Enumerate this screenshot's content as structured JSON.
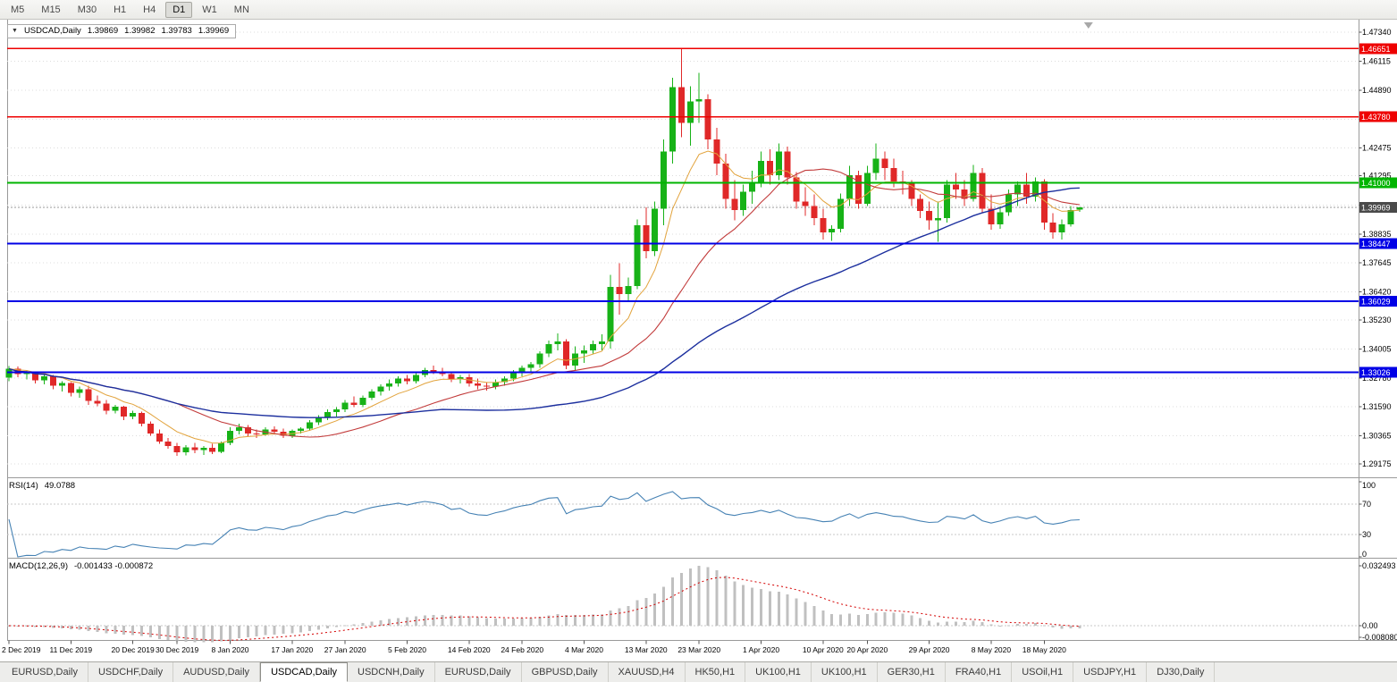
{
  "toolbar": {
    "timeframes": [
      "M5",
      "M15",
      "M30",
      "H1",
      "H4",
      "D1",
      "W1",
      "MN"
    ],
    "active_timeframe": "D1"
  },
  "chart_caption": {
    "arrow_icon": "▼",
    "symbol": "USDCAD,Daily",
    "open": "1.39869",
    "high": "1.39982",
    "low": "1.39783",
    "close": "1.39969"
  },
  "tabs": {
    "items": [
      "EURUSD,Daily",
      "USDCHF,Daily",
      "AUDUSD,Daily",
      "USDCAD,Daily",
      "USDCNH,Daily",
      "EURUSD,Daily",
      "GBPUSD,Daily",
      "XAUUSD,H4",
      "HK50,H1",
      "UK100,H1",
      "UK100,H1",
      "GER30,H1",
      "FRA40,H1",
      "USOil,H1",
      "USDJPY,H1",
      "DJ30,Daily"
    ],
    "active_index": 3
  },
  "chart_data": {
    "type": "candlestick",
    "title": "USDCAD,Daily",
    "price_axis_ticks": [
      "1.47340",
      "1.46115",
      "1.44890",
      "1.43665",
      "1.42475",
      "1.41295",
      "1.40060",
      "1.38835",
      "1.37645",
      "1.36420",
      "1.35230",
      "1.34005",
      "1.32780",
      "1.31590",
      "1.30365",
      "1.29175"
    ],
    "levels": [
      {
        "price": 1.46651,
        "label": "1.46651",
        "color": "#EE0000",
        "width": 1.4
      },
      {
        "price": 1.4378,
        "label": "1.43780",
        "color": "#EE0000",
        "width": 1.4
      },
      {
        "price": 1.41,
        "label": "1.41000",
        "color": "#00B400",
        "width": 2
      },
      {
        "price": 1.38447,
        "label": "1.38447",
        "color": "#0000E6",
        "width": 2
      },
      {
        "price": 1.36029,
        "label": "1.36029",
        "color": "#0000E6",
        "width": 2
      },
      {
        "price": 1.33026,
        "label": "1.33026",
        "color": "#0000E6",
        "width": 2
      }
    ],
    "current_price": 1.39969,
    "current_price_label": "1.39969",
    "x_labels": [
      {
        "index": 0,
        "label": "2 Dec 2019"
      },
      {
        "index": 7,
        "label": "11 Dec 2019"
      },
      {
        "index": 14,
        "label": "20 Dec 2019"
      },
      {
        "index": 19,
        "label": "30 Dec 2019"
      },
      {
        "index": 25,
        "label": "8 Jan 2020"
      },
      {
        "index": 32,
        "label": "17 Jan 2020"
      },
      {
        "index": 38,
        "label": "27 Jan 2020"
      },
      {
        "index": 45,
        "label": "5 Feb 2020"
      },
      {
        "index": 52,
        "label": "14 Feb 2020"
      },
      {
        "index": 58,
        "label": "24 Feb 2020"
      },
      {
        "index": 65,
        "label": "4 Mar 2020"
      },
      {
        "index": 72,
        "label": "13 Mar 2020"
      },
      {
        "index": 78,
        "label": "23 Mar 2020"
      },
      {
        "index": 85,
        "label": "1 Apr 2020"
      },
      {
        "index": 92,
        "label": "10 Apr 2020"
      },
      {
        "index": 97,
        "label": "20 Apr 2020"
      },
      {
        "index": 104,
        "label": "29 Apr 2020"
      },
      {
        "index": 111,
        "label": "8 May 2020"
      },
      {
        "index": 117,
        "label": "18 May 2020"
      }
    ],
    "candles": [
      [
        1.328,
        1.333,
        1.3265,
        1.3318
      ],
      [
        1.3318,
        1.3327,
        1.3282,
        1.3296
      ],
      [
        1.3296,
        1.3312,
        1.3272,
        1.3302
      ],
      [
        1.3302,
        1.3306,
        1.3256,
        1.327
      ],
      [
        1.327,
        1.3292,
        1.3252,
        1.3286
      ],
      [
        1.3286,
        1.3291,
        1.3232,
        1.3246
      ],
      [
        1.3246,
        1.3266,
        1.3222,
        1.3258
      ],
      [
        1.3258,
        1.3262,
        1.3202,
        1.3216
      ],
      [
        1.3216,
        1.3242,
        1.3196,
        1.3232
      ],
      [
        1.3232,
        1.3246,
        1.3166,
        1.3182
      ],
      [
        1.3182,
        1.3206,
        1.316,
        1.3172
      ],
      [
        1.3172,
        1.3186,
        1.3126,
        1.3142
      ],
      [
        1.3142,
        1.3166,
        1.313,
        1.3158
      ],
      [
        1.3158,
        1.3162,
        1.3102,
        1.3116
      ],
      [
        1.3116,
        1.3142,
        1.3106,
        1.3132
      ],
      [
        1.3132,
        1.3138,
        1.3076,
        1.3086
      ],
      [
        1.3086,
        1.3096,
        1.3036,
        1.3046
      ],
      [
        1.3046,
        1.3062,
        1.3002,
        1.3012
      ],
      [
        1.3012,
        1.3026,
        1.2982,
        1.2992
      ],
      [
        1.2992,
        1.3006,
        1.2952,
        1.2966
      ],
      [
        1.2966,
        1.2996,
        1.2954,
        1.2988
      ],
      [
        1.2988,
        1.3006,
        1.2962,
        1.2976
      ],
      [
        1.2976,
        1.2992,
        1.2956,
        1.2986
      ],
      [
        1.2986,
        1.3002,
        1.2958,
        1.2968
      ],
      [
        1.2968,
        1.3012,
        1.2962,
        1.3006
      ],
      [
        1.3006,
        1.3072,
        1.2996,
        1.3056
      ],
      [
        1.3056,
        1.3086,
        1.3042,
        1.3072
      ],
      [
        1.3072,
        1.3082,
        1.3032,
        1.3046
      ],
      [
        1.3046,
        1.3062,
        1.3026,
        1.3042
      ],
      [
        1.3042,
        1.3072,
        1.3036,
        1.3062
      ],
      [
        1.3062,
        1.3076,
        1.3042,
        1.3052
      ],
      [
        1.3052,
        1.3066,
        1.3026,
        1.3036
      ],
      [
        1.3036,
        1.3062,
        1.3026,
        1.3056
      ],
      [
        1.3056,
        1.3072,
        1.3046,
        1.3066
      ],
      [
        1.3066,
        1.3102,
        1.3056,
        1.3092
      ],
      [
        1.3092,
        1.3122,
        1.3082,
        1.3112
      ],
      [
        1.3112,
        1.3146,
        1.3102,
        1.3136
      ],
      [
        1.3136,
        1.3156,
        1.3116,
        1.3146
      ],
      [
        1.3146,
        1.3186,
        1.3136,
        1.3176
      ],
      [
        1.3176,
        1.3202,
        1.3156,
        1.3166
      ],
      [
        1.3166,
        1.3206,
        1.3156,
        1.3196
      ],
      [
        1.3196,
        1.3232,
        1.3186,
        1.3222
      ],
      [
        1.3222,
        1.3252,
        1.3206,
        1.3242
      ],
      [
        1.3242,
        1.3272,
        1.3226,
        1.3256
      ],
      [
        1.3256,
        1.3286,
        1.3242,
        1.3276
      ],
      [
        1.3276,
        1.3292,
        1.3252,
        1.3266
      ],
      [
        1.3266,
        1.3302,
        1.3256,
        1.3292
      ],
      [
        1.3292,
        1.3322,
        1.3282,
        1.3312
      ],
      [
        1.3312,
        1.3332,
        1.3296,
        1.3306
      ],
      [
        1.3306,
        1.3322,
        1.3286,
        1.3296
      ],
      [
        1.3296,
        1.3306,
        1.3262,
        1.3272
      ],
      [
        1.3272,
        1.3292,
        1.3256,
        1.3282
      ],
      [
        1.3282,
        1.3296,
        1.3242,
        1.3256
      ],
      [
        1.3256,
        1.3276,
        1.3232,
        1.3246
      ],
      [
        1.3246,
        1.3262,
        1.3226,
        1.3242
      ],
      [
        1.3242,
        1.3272,
        1.3232,
        1.3262
      ],
      [
        1.3262,
        1.3286,
        1.3246,
        1.3276
      ],
      [
        1.3276,
        1.3312,
        1.3266,
        1.3302
      ],
      [
        1.3302,
        1.3332,
        1.3286,
        1.3322
      ],
      [
        1.3322,
        1.3346,
        1.3302,
        1.3336
      ],
      [
        1.3336,
        1.3392,
        1.3322,
        1.3382
      ],
      [
        1.3382,
        1.3436,
        1.3366,
        1.3422
      ],
      [
        1.3422,
        1.3466,
        1.3396,
        1.3432
      ],
      [
        1.3432,
        1.3442,
        1.3316,
        1.3332
      ],
      [
        1.3332,
        1.3412,
        1.331,
        1.3382
      ],
      [
        1.3382,
        1.3416,
        1.3342,
        1.3396
      ],
      [
        1.3396,
        1.3436,
        1.3382,
        1.3422
      ],
      [
        1.3422,
        1.3462,
        1.3396,
        1.3432
      ],
      [
        1.3432,
        1.3712,
        1.3402,
        1.3662
      ],
      [
        1.3662,
        1.3762,
        1.3546,
        1.3632
      ],
      [
        1.3632,
        1.3702,
        1.3602,
        1.3666
      ],
      [
        1.3666,
        1.3946,
        1.3652,
        1.3922
      ],
      [
        1.3922,
        1.3996,
        1.3782,
        1.3812
      ],
      [
        1.3812,
        1.4022,
        1.3792,
        1.3992
      ],
      [
        1.3992,
        1.4282,
        1.3922,
        1.4232
      ],
      [
        1.4232,
        1.4542,
        1.4182,
        1.4502
      ],
      [
        1.4502,
        1.4668,
        1.4292,
        1.4352
      ],
      [
        1.4352,
        1.4506,
        1.4256,
        1.4442
      ],
      [
        1.4442,
        1.4562,
        1.4352,
        1.4452
      ],
      [
        1.4452,
        1.4472,
        1.4242,
        1.4282
      ],
      [
        1.4282,
        1.4332,
        1.4132,
        1.4182
      ],
      [
        1.4182,
        1.4222,
        1.3992,
        1.4032
      ],
      [
        1.4032,
        1.4112,
        1.3942,
        1.3986
      ],
      [
        1.3986,
        1.4092,
        1.3962,
        1.4062
      ],
      [
        1.4062,
        1.4152,
        1.4012,
        1.4102
      ],
      [
        1.4102,
        1.4232,
        1.4082,
        1.4192
      ],
      [
        1.4192,
        1.4242,
        1.4092,
        1.4132
      ],
      [
        1.4132,
        1.4266,
        1.4112,
        1.4232
      ],
      [
        1.4232,
        1.4252,
        1.4092,
        1.4122
      ],
      [
        1.4122,
        1.4146,
        1.3992,
        1.4022
      ],
      [
        1.4022,
        1.4082,
        1.3962,
        1.4002
      ],
      [
        1.4002,
        1.4052,
        1.3922,
        1.3952
      ],
      [
        1.3952,
        1.3992,
        1.3862,
        1.3892
      ],
      [
        1.3892,
        1.3922,
        1.3856,
        1.3906
      ],
      [
        1.3906,
        1.4056,
        1.3892,
        1.4032
      ],
      [
        1.4032,
        1.4172,
        1.4002,
        1.4132
      ],
      [
        1.4132,
        1.4152,
        1.3992,
        1.4012
      ],
      [
        1.4012,
        1.4172,
        1.4002,
        1.4142
      ],
      [
        1.4142,
        1.4266,
        1.4112,
        1.4202
      ],
      [
        1.4202,
        1.4232,
        1.4112,
        1.4162
      ],
      [
        1.4162,
        1.4202,
        1.4082,
        1.4106
      ],
      [
        1.4106,
        1.4152,
        1.4052,
        1.4096
      ],
      [
        1.4096,
        1.4112,
        1.4002,
        1.4032
      ],
      [
        1.4032,
        1.4052,
        1.3952,
        1.3982
      ],
      [
        1.3982,
        1.4022,
        1.3902,
        1.3942
      ],
      [
        1.3942,
        1.4022,
        1.3852,
        1.3952
      ],
      [
        1.3952,
        1.4112,
        1.3932,
        1.4092
      ],
      [
        1.4092,
        1.4142,
        1.4032,
        1.4072
      ],
      [
        1.4072,
        1.4112,
        1.4002,
        1.4032
      ],
      [
        1.4032,
        1.4176,
        1.4022,
        1.4142
      ],
      [
        1.4142,
        1.4162,
        1.3972,
        1.3992
      ],
      [
        1.3992,
        1.4052,
        1.3902,
        1.3926
      ],
      [
        1.3926,
        1.4002,
        1.3906,
        1.3976
      ],
      [
        1.3976,
        1.4072,
        1.3962,
        1.4052
      ],
      [
        1.4052,
        1.4106,
        1.4002,
        1.4092
      ],
      [
        1.4092,
        1.4142,
        1.4012,
        1.4042
      ],
      [
        1.4042,
        1.4122,
        1.4022,
        1.4106
      ],
      [
        1.4106,
        1.4116,
        1.3902,
        1.3932
      ],
      [
        1.3932,
        1.3972,
        1.3866,
        1.3892
      ],
      [
        1.3892,
        1.3946,
        1.3862,
        1.3926
      ],
      [
        1.3926,
        1.4002,
        1.3916,
        1.3986
      ],
      [
        1.39869,
        1.39982,
        1.39783,
        1.39969
      ]
    ],
    "moving_averages": [
      {
        "period": 8,
        "method": "ema",
        "color": "#E2A33C",
        "width": 1
      },
      {
        "period": 20,
        "method": "sma",
        "color": "#C23B3B",
        "width": 1.1
      },
      {
        "period": 50,
        "method": "sma",
        "color": "#1C2F9E",
        "width": 1.4
      }
    ],
    "rsi": {
      "label": "RSI(14)",
      "value": "49.0788",
      "period": 14,
      "color": "#4682B4",
      "levels": [
        70,
        30
      ],
      "axis_ticks": [
        100,
        70,
        30,
        0
      ]
    },
    "macd": {
      "label": "MACD(12,26,9)",
      "values": "-0.001433 -0.000872",
      "fast": 12,
      "slow": 26,
      "signal": 9,
      "axis_ticks": [
        "0.032493",
        "0.00",
        "-0.008080"
      ]
    },
    "colors": {
      "up_candle": "#17B217",
      "down_candle": "#E02828",
      "grid": "#DCDCDC",
      "macd_histogram": "#C0C0C0",
      "macd_signal": "#D40000",
      "current_price_badge": "#4A4A4A"
    }
  }
}
